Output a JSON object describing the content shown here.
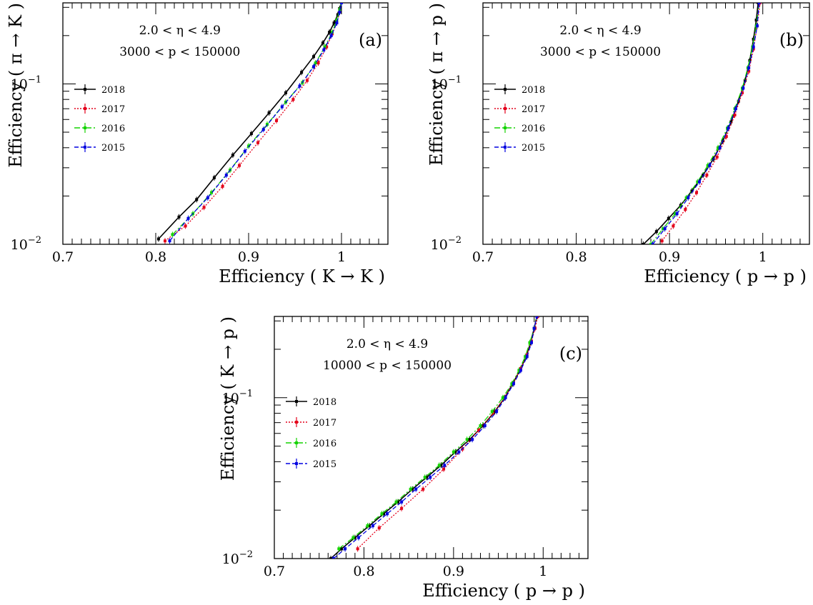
{
  "chart_data": [
    {
      "type": "line",
      "panel_label": "(a)",
      "xlabel": "Efficiency ( K → K )",
      "ylabel": "Efficiency ( π → K )",
      "annotations": [
        "2.0 < η < 4.9",
        "3000 < p < 150000"
      ],
      "xlim": [
        0.7,
        1.05
      ],
      "ylim": [
        0.01,
        0.32
      ],
      "yscale": "log",
      "xticks": [
        "0.7",
        "0.8",
        "0.9",
        "1"
      ],
      "yticks_labeled": [
        {
          "value": 0.01,
          "label": "10",
          "sup": "−2"
        },
        {
          "value": 0.1,
          "label": "10",
          "sup": "−1"
        }
      ],
      "legend_position": "left",
      "series": [
        {
          "name": "2018",
          "color": "#000000",
          "dash": "",
          "x": [
            0.803,
            0.825,
            0.844,
            0.863,
            0.883,
            0.903,
            0.922,
            0.94,
            0.957,
            0.97,
            0.98,
            0.987,
            0.992,
            0.996,
            0.998,
            1.0
          ],
          "y": [
            0.0108,
            0.0148,
            0.019,
            0.026,
            0.036,
            0.049,
            0.066,
            0.088,
            0.118,
            0.148,
            0.18,
            0.21,
            0.24,
            0.27,
            0.295,
            0.32
          ]
        },
        {
          "name": "2017",
          "color": "#e4001b",
          "dash": "2 2",
          "x": [
            0.81,
            0.832,
            0.852,
            0.872,
            0.89,
            0.91,
            0.93,
            0.948,
            0.963,
            0.975,
            0.984,
            0.99,
            0.995,
            0.998,
            1.0
          ],
          "y": [
            0.0105,
            0.013,
            0.017,
            0.023,
            0.031,
            0.043,
            0.059,
            0.08,
            0.105,
            0.135,
            0.17,
            0.205,
            0.24,
            0.28,
            0.32
          ]
        },
        {
          "name": "2016",
          "color": "#15d300",
          "dash": "8 3 2 3",
          "x": [
            0.818,
            0.84,
            0.86,
            0.88,
            0.9,
            0.92,
            0.94,
            0.958,
            0.972,
            0.982,
            0.99,
            0.995,
            0.998,
            1.0
          ],
          "y": [
            0.0115,
            0.0155,
            0.021,
            0.029,
            0.041,
            0.056,
            0.077,
            0.102,
            0.135,
            0.17,
            0.21,
            0.25,
            0.29,
            0.32
          ]
        },
        {
          "name": "2015",
          "color": "#0000e0",
          "dash": "6 3",
          "x": [
            0.815,
            0.835,
            0.856,
            0.876,
            0.896,
            0.916,
            0.936,
            0.955,
            0.97,
            0.981,
            0.989,
            0.995,
            0.998,
            1.0
          ],
          "y": [
            0.0105,
            0.0145,
            0.0195,
            0.027,
            0.038,
            0.052,
            0.072,
            0.097,
            0.128,
            0.163,
            0.2,
            0.24,
            0.28,
            0.32
          ]
        }
      ]
    },
    {
      "type": "line",
      "panel_label": "(b)",
      "xlabel": "Efficiency ( p → p )",
      "ylabel": "Efficiency ( π → p )",
      "annotations": [
        "2.0 < η < 4.9",
        "3000 < p < 150000"
      ],
      "xlim": [
        0.7,
        1.05
      ],
      "ylim": [
        0.01,
        0.32
      ],
      "yscale": "log",
      "xticks": [
        "0.7",
        "0.8",
        "0.9",
        "1"
      ],
      "yticks_labeled": [
        {
          "value": 0.01,
          "label": "10",
          "sup": "−2"
        },
        {
          "value": 0.1,
          "label": "10",
          "sup": "−1"
        }
      ],
      "legend_position": "left",
      "series": [
        {
          "name": "2018",
          "color": "#000000",
          "dash": "",
          "x": [
            0.872,
            0.886,
            0.899,
            0.912,
            0.924,
            0.936,
            0.947,
            0.957,
            0.966,
            0.974,
            0.981,
            0.986,
            0.99,
            0.993,
            0.995
          ],
          "y": [
            0.01,
            0.012,
            0.0145,
            0.0175,
            0.0215,
            0.027,
            0.034,
            0.044,
            0.058,
            0.078,
            0.105,
            0.14,
            0.19,
            0.25,
            0.32
          ]
        },
        {
          "name": "2017",
          "color": "#e4001b",
          "dash": "2 2",
          "x": [
            0.892,
            0.904,
            0.917,
            0.929,
            0.94,
            0.951,
            0.961,
            0.97,
            0.978,
            0.985,
            0.99,
            0.994,
            0.997
          ],
          "y": [
            0.0105,
            0.013,
            0.0165,
            0.021,
            0.027,
            0.035,
            0.047,
            0.064,
            0.088,
            0.12,
            0.165,
            0.23,
            0.32
          ]
        },
        {
          "name": "2016",
          "color": "#15d300",
          "dash": "8 3 2 3",
          "x": [
            0.88,
            0.893,
            0.906,
            0.918,
            0.93,
            0.941,
            0.952,
            0.962,
            0.97,
            0.978,
            0.984,
            0.989,
            0.993,
            0.996
          ],
          "y": [
            0.01,
            0.0125,
            0.0155,
            0.0195,
            0.0245,
            0.031,
            0.04,
            0.053,
            0.07,
            0.094,
            0.126,
            0.17,
            0.23,
            0.32
          ]
        },
        {
          "name": "2015",
          "color": "#0000e0",
          "dash": "6 3",
          "x": [
            0.882,
            0.895,
            0.908,
            0.92,
            0.932,
            0.943,
            0.954,
            0.963,
            0.971,
            0.979,
            0.985,
            0.99,
            0.994,
            0.996
          ],
          "y": [
            0.01,
            0.0125,
            0.0155,
            0.0195,
            0.0245,
            0.031,
            0.04,
            0.053,
            0.07,
            0.094,
            0.126,
            0.17,
            0.23,
            0.32
          ]
        }
      ]
    },
    {
      "type": "line",
      "panel_label": "(c)",
      "xlabel": "Efficiency ( p → p )",
      "ylabel": "Efficiency ( K → p )",
      "annotations": [
        "2.0 < η < 4.9",
        "10000 < p < 150000"
      ],
      "xlim": [
        0.7,
        1.05
      ],
      "ylim": [
        0.01,
        0.32
      ],
      "yscale": "log",
      "xticks": [
        "0.7",
        "0.8",
        "0.9",
        "1"
      ],
      "yticks_labeled": [
        {
          "value": 0.01,
          "label": "10",
          "sup": "−2"
        },
        {
          "value": 0.1,
          "label": "10",
          "sup": "−1"
        }
      ],
      "legend_position": "left",
      "series": [
        {
          "name": "2018",
          "color": "#000000",
          "dash": "",
          "x": [
            0.763,
            0.775,
            0.79,
            0.806,
            0.822,
            0.838,
            0.854,
            0.87,
            0.886,
            0.902,
            0.918,
            0.933,
            0.946,
            0.957,
            0.966,
            0.974,
            0.981,
            0.986,
            0.99,
            0.993
          ],
          "y": [
            0.01,
            0.0115,
            0.0135,
            0.016,
            0.019,
            0.0225,
            0.027,
            0.032,
            0.038,
            0.046,
            0.055,
            0.067,
            0.082,
            0.1,
            0.122,
            0.148,
            0.18,
            0.22,
            0.27,
            0.32
          ]
        },
        {
          "name": "2017",
          "color": "#e4001b",
          "dash": "2 2",
          "x": [
            0.793,
            0.817,
            0.842,
            0.866,
            0.889,
            0.91,
            0.928,
            0.944,
            0.957,
            0.967,
            0.975,
            0.982,
            0.987,
            0.991,
            0.994
          ],
          "y": [
            0.0115,
            0.0155,
            0.0205,
            0.027,
            0.036,
            0.048,
            0.063,
            0.08,
            0.1,
            0.124,
            0.152,
            0.185,
            0.225,
            0.27,
            0.32
          ]
        },
        {
          "name": "2016",
          "color": "#15d300",
          "dash": "8 3 2 3",
          "x": [
            0.772,
            0.788,
            0.804,
            0.82,
            0.836,
            0.852,
            0.868,
            0.884,
            0.9,
            0.915,
            0.93,
            0.943,
            0.955,
            0.965,
            0.973,
            0.98,
            0.985,
            0.99,
            0.993
          ],
          "y": [
            0.0115,
            0.0135,
            0.016,
            0.019,
            0.0225,
            0.027,
            0.032,
            0.038,
            0.046,
            0.055,
            0.067,
            0.082,
            0.1,
            0.122,
            0.148,
            0.18,
            0.22,
            0.27,
            0.32
          ]
        },
        {
          "name": "2015",
          "color": "#0000e0",
          "dash": "6 3",
          "x": [
            0.766,
            0.779,
            0.794,
            0.81,
            0.826,
            0.842,
            0.858,
            0.874,
            0.89,
            0.906,
            0.921,
            0.935,
            0.948,
            0.958,
            0.967,
            0.975,
            0.982,
            0.987,
            0.99,
            0.993
          ],
          "y": [
            0.01,
            0.0115,
            0.0135,
            0.016,
            0.019,
            0.0225,
            0.027,
            0.032,
            0.038,
            0.046,
            0.055,
            0.067,
            0.082,
            0.1,
            0.122,
            0.148,
            0.18,
            0.22,
            0.27,
            0.32
          ]
        }
      ]
    }
  ]
}
